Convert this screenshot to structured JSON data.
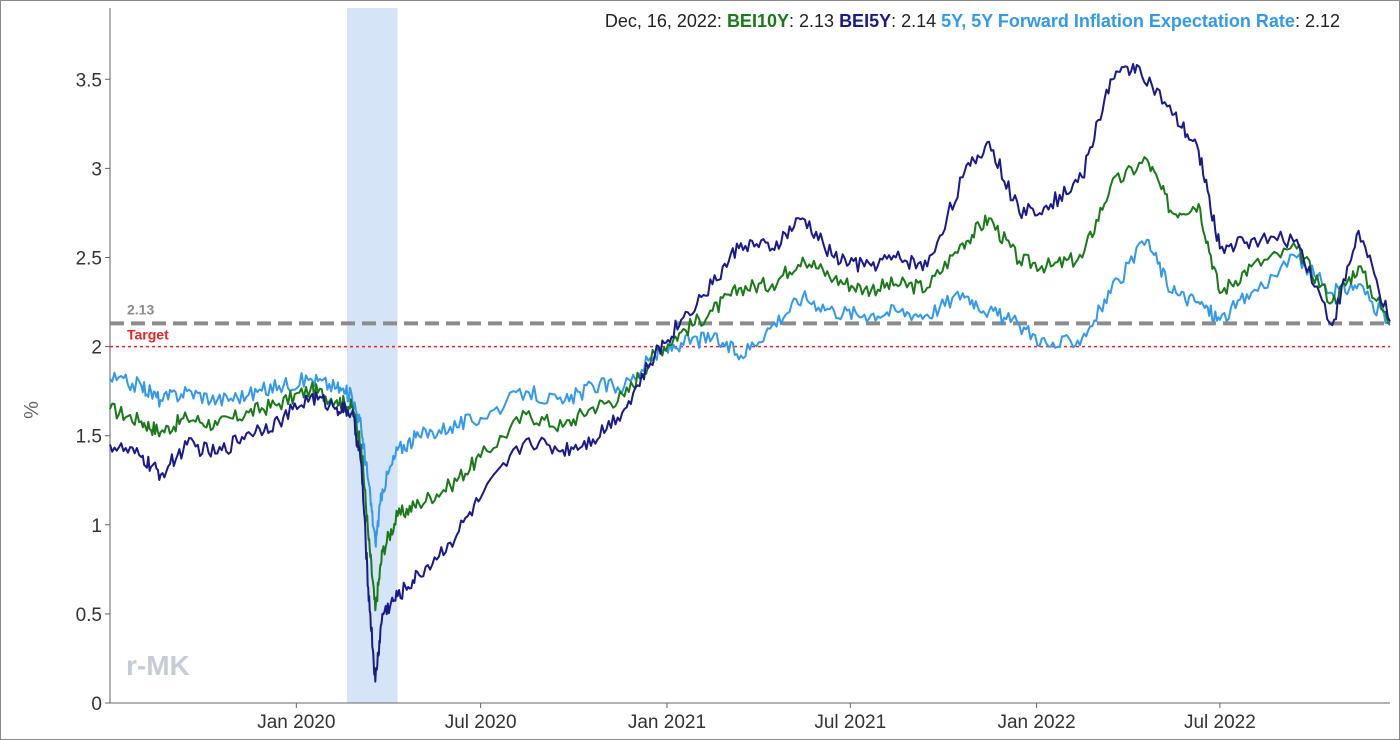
{
  "header": {
    "date": "Dec, 16, 2022",
    "items": [
      {
        "name": "BEI10Y",
        "value": "2.13",
        "color": "#1a7a1a"
      },
      {
        "name": "BEI5Y",
        "value": "2.14",
        "color": "#1a1a8c"
      },
      {
        "name": "5Y, 5Y Forward Inflation Expectation Rate",
        "value": "2.12",
        "color": "#3399ee"
      }
    ]
  },
  "watermark": "r-MK",
  "chart_data": {
    "type": "line",
    "x_range": [
      "2019-07-01",
      "2022-12-16"
    ],
    "y_range": [
      0,
      3.9
    ],
    "ylabel": "%",
    "x_ticks": [
      {
        "date": "2020-01-01",
        "label": "Jan 2020"
      },
      {
        "date": "2020-07-01",
        "label": "Jul 2020"
      },
      {
        "date": "2021-01-01",
        "label": "Jan 2021"
      },
      {
        "date": "2021-07-01",
        "label": "Jul 2021"
      },
      {
        "date": "2022-01-01",
        "label": "Jan 2022"
      },
      {
        "date": "2022-07-01",
        "label": "Jul 2022"
      }
    ],
    "y_ticks": [
      {
        "value": 0,
        "label": "0"
      },
      {
        "value": 0.5,
        "label": "0.5"
      },
      {
        "value": 1,
        "label": "1"
      },
      {
        "value": 1.5,
        "label": "1.5"
      },
      {
        "value": 2,
        "label": "2"
      },
      {
        "value": 2.5,
        "label": "2.5"
      },
      {
        "value": 3,
        "label": "3"
      },
      {
        "value": 3.5,
        "label": "3.5"
      }
    ],
    "shaded_region": {
      "start": "2020-02-20",
      "end": "2020-04-10",
      "color": "#d6e4f7"
    },
    "reference_lines": [
      {
        "value": 2.13,
        "label": "2.13",
        "color": "#8c8c8c",
        "style": "dashed"
      },
      {
        "value": 2.0,
        "label": "Target",
        "color": "#ee2222",
        "style": "dotted"
      }
    ],
    "series": [
      {
        "name": "BEI10Y",
        "color": "#1a7a1a",
        "points": [
          [
            "2019-07-01",
            1.65
          ],
          [
            "2019-08-01",
            1.58
          ],
          [
            "2019-08-20",
            1.52
          ],
          [
            "2019-09-15",
            1.6
          ],
          [
            "2019-10-15",
            1.56
          ],
          [
            "2019-11-15",
            1.63
          ],
          [
            "2019-12-15",
            1.68
          ],
          [
            "2020-01-15",
            1.76
          ],
          [
            "2020-02-10",
            1.7
          ],
          [
            "2020-02-25",
            1.66
          ],
          [
            "2020-03-05",
            1.45
          ],
          [
            "2020-03-12",
            0.95
          ],
          [
            "2020-03-19",
            0.52
          ],
          [
            "2020-03-26",
            0.85
          ],
          [
            "2020-04-10",
            1.05
          ],
          [
            "2020-05-01",
            1.12
          ],
          [
            "2020-06-01",
            1.22
          ],
          [
            "2020-07-01",
            1.38
          ],
          [
            "2020-08-15",
            1.62
          ],
          [
            "2020-09-20",
            1.55
          ],
          [
            "2020-10-20",
            1.66
          ],
          [
            "2020-11-20",
            1.72
          ],
          [
            "2020-12-20",
            1.96
          ],
          [
            "2021-01-15",
            2.08
          ],
          [
            "2021-02-15",
            2.2
          ],
          [
            "2021-03-15",
            2.33
          ],
          [
            "2021-04-15",
            2.35
          ],
          [
            "2021-05-15",
            2.5
          ],
          [
            "2021-06-15",
            2.38
          ],
          [
            "2021-07-15",
            2.32
          ],
          [
            "2021-08-15",
            2.35
          ],
          [
            "2021-09-15",
            2.33
          ],
          [
            "2021-10-20",
            2.58
          ],
          [
            "2021-11-15",
            2.72
          ],
          [
            "2021-12-15",
            2.48
          ],
          [
            "2022-01-15",
            2.45
          ],
          [
            "2022-02-15",
            2.5
          ],
          [
            "2022-03-15",
            2.9
          ],
          [
            "2022-04-20",
            3.05
          ],
          [
            "2022-05-15",
            2.75
          ],
          [
            "2022-06-10",
            2.8
          ],
          [
            "2022-07-01",
            2.3
          ],
          [
            "2022-08-01",
            2.45
          ],
          [
            "2022-09-15",
            2.55
          ],
          [
            "2022-10-20",
            2.25
          ],
          [
            "2022-11-15",
            2.45
          ],
          [
            "2022-12-16",
            2.13
          ]
        ]
      },
      {
        "name": "BEI5Y",
        "color": "#1a1a8c",
        "points": [
          [
            "2019-07-01",
            1.45
          ],
          [
            "2019-08-01",
            1.38
          ],
          [
            "2019-08-20",
            1.28
          ],
          [
            "2019-09-15",
            1.45
          ],
          [
            "2019-10-15",
            1.4
          ],
          [
            "2019-11-15",
            1.52
          ],
          [
            "2019-12-15",
            1.58
          ],
          [
            "2020-01-15",
            1.72
          ],
          [
            "2020-02-10",
            1.66
          ],
          [
            "2020-02-25",
            1.63
          ],
          [
            "2020-03-05",
            1.35
          ],
          [
            "2020-03-12",
            0.65
          ],
          [
            "2020-03-19",
            0.12
          ],
          [
            "2020-03-26",
            0.5
          ],
          [
            "2020-04-10",
            0.6
          ],
          [
            "2020-05-01",
            0.72
          ],
          [
            "2020-06-01",
            0.9
          ],
          [
            "2020-07-01",
            1.15
          ],
          [
            "2020-08-15",
            1.48
          ],
          [
            "2020-09-20",
            1.42
          ],
          [
            "2020-10-20",
            1.48
          ],
          [
            "2020-11-20",
            1.65
          ],
          [
            "2020-12-20",
            1.95
          ],
          [
            "2021-01-15",
            2.15
          ],
          [
            "2021-02-15",
            2.35
          ],
          [
            "2021-03-15",
            2.58
          ],
          [
            "2021-04-15",
            2.55
          ],
          [
            "2021-05-15",
            2.72
          ],
          [
            "2021-06-15",
            2.5
          ],
          [
            "2021-07-15",
            2.45
          ],
          [
            "2021-08-15",
            2.5
          ],
          [
            "2021-09-15",
            2.45
          ],
          [
            "2021-10-20",
            2.95
          ],
          [
            "2021-11-15",
            3.15
          ],
          [
            "2021-12-15",
            2.75
          ],
          [
            "2022-01-15",
            2.8
          ],
          [
            "2022-02-15",
            2.95
          ],
          [
            "2022-03-15",
            3.5
          ],
          [
            "2022-04-10",
            3.58
          ],
          [
            "2022-05-15",
            3.3
          ],
          [
            "2022-06-10",
            3.1
          ],
          [
            "2022-07-01",
            2.55
          ],
          [
            "2022-08-01",
            2.6
          ],
          [
            "2022-09-15",
            2.6
          ],
          [
            "2022-10-20",
            2.12
          ],
          [
            "2022-11-15",
            2.65
          ],
          [
            "2022-12-16",
            2.14
          ]
        ]
      },
      {
        "name": "5Y, 5Y Forward Inflation Expectation Rate",
        "color": "#3399ee",
        "points": [
          [
            "2019-07-01",
            1.82
          ],
          [
            "2019-08-01",
            1.78
          ],
          [
            "2019-08-20",
            1.7
          ],
          [
            "2019-09-15",
            1.75
          ],
          [
            "2019-10-15",
            1.7
          ],
          [
            "2019-11-15",
            1.73
          ],
          [
            "2019-12-15",
            1.78
          ],
          [
            "2020-01-15",
            1.82
          ],
          [
            "2020-02-10",
            1.77
          ],
          [
            "2020-02-25",
            1.72
          ],
          [
            "2020-03-05",
            1.55
          ],
          [
            "2020-03-12",
            1.25
          ],
          [
            "2020-03-19",
            0.9
          ],
          [
            "2020-03-26",
            1.2
          ],
          [
            "2020-04-10",
            1.42
          ],
          [
            "2020-05-01",
            1.5
          ],
          [
            "2020-06-01",
            1.55
          ],
          [
            "2020-07-01",
            1.6
          ],
          [
            "2020-08-15",
            1.75
          ],
          [
            "2020-09-20",
            1.68
          ],
          [
            "2020-10-20",
            1.78
          ],
          [
            "2020-11-20",
            1.78
          ],
          [
            "2020-12-20",
            1.95
          ],
          [
            "2021-01-15",
            2.02
          ],
          [
            "2021-02-15",
            2.05
          ],
          [
            "2021-03-15",
            1.95
          ],
          [
            "2021-04-15",
            2.12
          ],
          [
            "2021-05-15",
            2.28
          ],
          [
            "2021-06-15",
            2.2
          ],
          [
            "2021-07-15",
            2.18
          ],
          [
            "2021-08-15",
            2.2
          ],
          [
            "2021-09-15",
            2.18
          ],
          [
            "2021-10-20",
            2.3
          ],
          [
            "2021-11-15",
            2.2
          ],
          [
            "2021-12-15",
            2.12
          ],
          [
            "2022-01-15",
            2.0
          ],
          [
            "2022-02-15",
            2.05
          ],
          [
            "2022-03-15",
            2.3
          ],
          [
            "2022-04-20",
            2.6
          ],
          [
            "2022-05-15",
            2.3
          ],
          [
            "2022-06-10",
            2.25
          ],
          [
            "2022-07-01",
            2.15
          ],
          [
            "2022-08-01",
            2.3
          ],
          [
            "2022-09-15",
            2.5
          ],
          [
            "2022-10-20",
            2.3
          ],
          [
            "2022-11-15",
            2.35
          ],
          [
            "2022-12-16",
            2.12
          ]
        ]
      }
    ]
  }
}
